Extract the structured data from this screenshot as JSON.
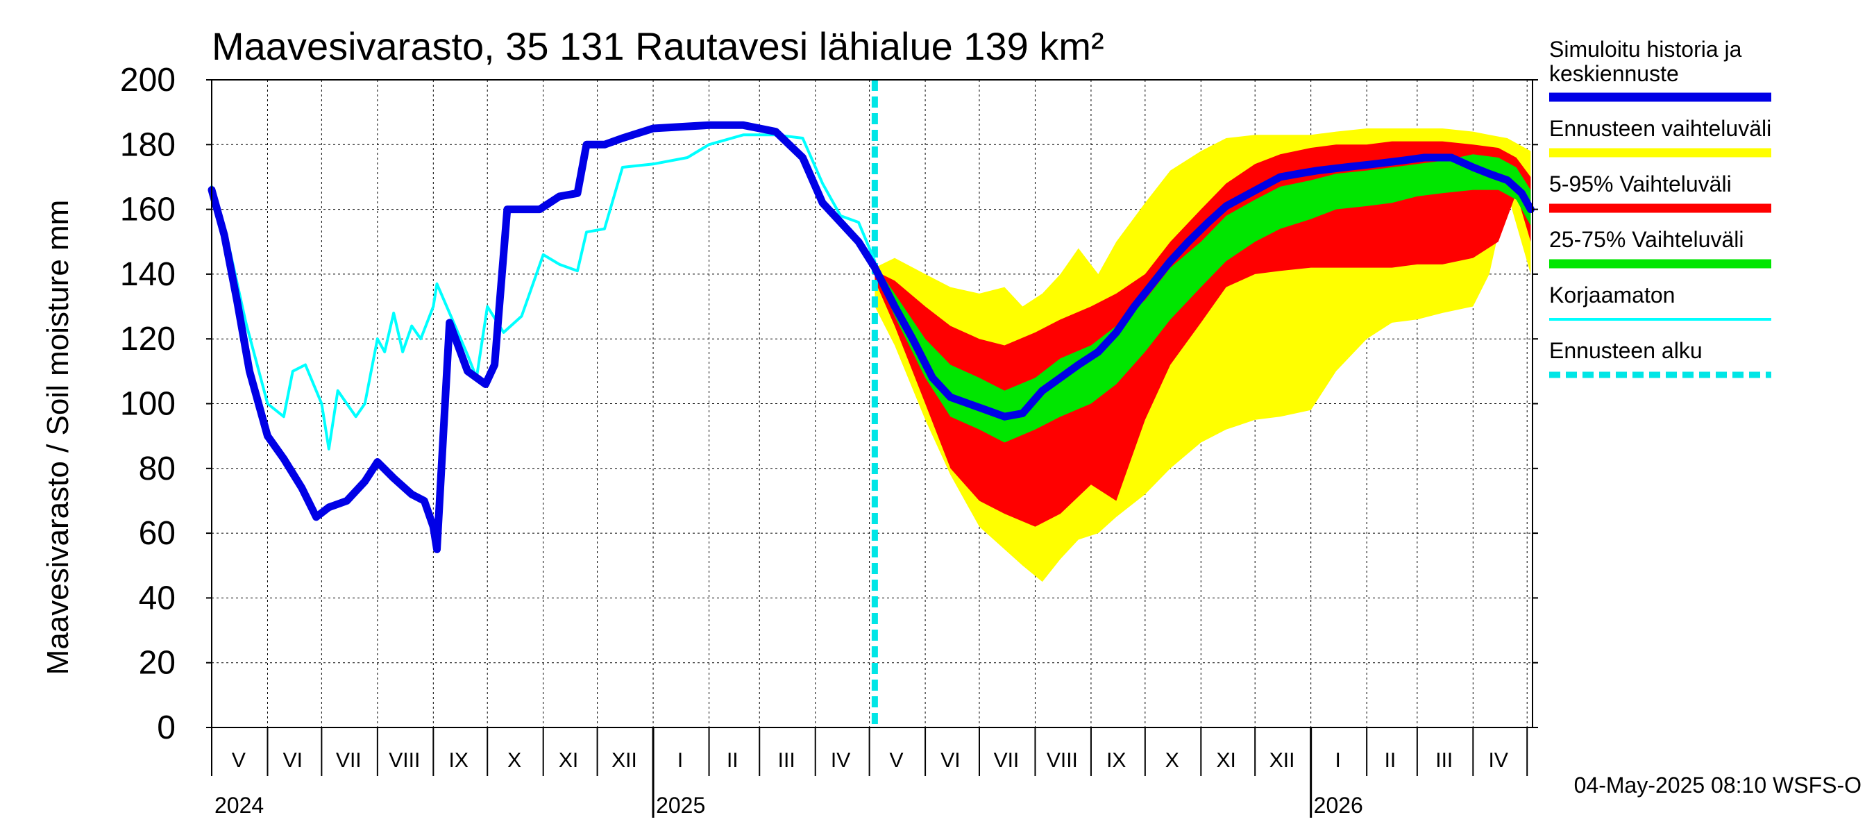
{
  "chart_data": {
    "type": "area",
    "title": "Maavesivarasto, 35 131 Rautavesi lähialue 139 km²",
    "ylabel": "Maavesivarasto / Soil moisture   mm",
    "ylim": [
      0,
      200
    ],
    "y_ticks": [
      0,
      20,
      40,
      60,
      80,
      100,
      120,
      140,
      160,
      180,
      200
    ],
    "grid": true,
    "xlim": [
      "2024-05-01",
      "2026-05-04"
    ],
    "forecast_start": "2025-05-04",
    "month_labels": [
      {
        "label": "V",
        "mid": "2024-05-16"
      },
      {
        "label": "VI",
        "mid": "2024-06-15"
      },
      {
        "label": "VII",
        "mid": "2024-07-16"
      },
      {
        "label": "VIII",
        "mid": "2024-08-16"
      },
      {
        "label": "IX",
        "mid": "2024-09-15"
      },
      {
        "label": "X",
        "mid": "2024-10-16"
      },
      {
        "label": "XI",
        "mid": "2024-11-15"
      },
      {
        "label": "XII",
        "mid": "2024-12-16"
      },
      {
        "label": "I",
        "mid": "2025-01-16"
      },
      {
        "label": "II",
        "mid": "2025-02-14"
      },
      {
        "label": "III",
        "mid": "2025-03-16"
      },
      {
        "label": "IV",
        "mid": "2025-04-15"
      },
      {
        "label": "V",
        "mid": "2025-05-16"
      },
      {
        "label": "VI",
        "mid": "2025-06-15"
      },
      {
        "label": "VII",
        "mid": "2025-07-16"
      },
      {
        "label": "VIII",
        "mid": "2025-08-16"
      },
      {
        "label": "IX",
        "mid": "2025-09-15"
      },
      {
        "label": "X",
        "mid": "2025-10-16"
      },
      {
        "label": "XI",
        "mid": "2025-11-15"
      },
      {
        "label": "XII",
        "mid": "2025-12-16"
      },
      {
        "label": "I",
        "mid": "2026-01-16"
      },
      {
        "label": "II",
        "mid": "2026-02-14"
      },
      {
        "label": "III",
        "mid": "2026-03-16"
      },
      {
        "label": "IV",
        "mid": "2026-04-15"
      }
    ],
    "year_labels": [
      {
        "label": "2024",
        "date": "2024-05-01"
      },
      {
        "label": "2025",
        "date": "2025-01-01"
      },
      {
        "label": "2026",
        "date": "2026-01-01"
      }
    ],
    "legend_position": "right",
    "legend": [
      {
        "label": "Simuloitu historia ja keskiennuste",
        "lines": [
          "Simuloitu historia ja",
          "keskiennuste"
        ],
        "color": "#0000e6",
        "style": "thick"
      },
      {
        "label": "Ennusteen vaihteluväli",
        "lines": [
          "Ennusteen vaihteluväli"
        ],
        "color": "#ffff00",
        "style": "thick"
      },
      {
        "label": "5-95% Vaihteluväli",
        "lines": [
          "5-95% Vaihteluväli"
        ],
        "color": "#ff0000",
        "style": "thick"
      },
      {
        "label": "25-75% Vaihteluväli",
        "lines": [
          "25-75% Vaihteluväli"
        ],
        "color": "#00e600",
        "style": "thick"
      },
      {
        "label": "Korjaamaton",
        "lines": [
          "Korjaamaton"
        ],
        "color": "#00ffff",
        "style": "thin"
      },
      {
        "label": "Ennusteen alku",
        "lines": [
          "Ennusteen alku"
        ],
        "color": "#00e6e6",
        "style": "dashed"
      }
    ],
    "series": [
      {
        "name": "Simuloitu historia ja keskiennuste",
        "color": "#0000e6",
        "x": [
          "2024-05-01",
          "2024-05-08",
          "2024-05-15",
          "2024-05-22",
          "2024-06-01",
          "2024-06-10",
          "2024-06-20",
          "2024-06-28",
          "2024-07-05",
          "2024-07-15",
          "2024-07-25",
          "2024-08-01",
          "2024-08-10",
          "2024-08-20",
          "2024-08-27",
          "2024-09-01",
          "2024-09-03",
          "2024-09-10",
          "2024-09-20",
          "2024-09-30",
          "2024-10-05",
          "2024-10-12",
          "2024-10-20",
          "2024-10-30",
          "2024-11-10",
          "2024-11-20",
          "2024-11-25",
          "2024-12-05",
          "2024-12-15",
          "2025-01-01",
          "2025-02-01",
          "2025-02-20",
          "2025-03-10",
          "2025-03-25",
          "2025-04-05",
          "2025-04-15",
          "2025-04-25",
          "2025-05-04",
          "2025-05-15",
          "2025-05-25",
          "2025-06-05",
          "2025-06-15",
          "2025-06-25",
          "2025-07-05",
          "2025-07-15",
          "2025-07-25",
          "2025-08-05",
          "2025-08-15",
          "2025-08-25",
          "2025-09-05",
          "2025-09-15",
          "2025-09-25",
          "2025-10-05",
          "2025-10-15",
          "2025-10-25",
          "2025-11-05",
          "2025-11-15",
          "2025-11-25",
          "2025-12-05",
          "2025-12-15",
          "2025-12-25",
          "2026-01-05",
          "2026-01-20",
          "2026-02-05",
          "2026-02-20",
          "2026-03-05",
          "2026-03-20",
          "2026-04-01",
          "2026-04-10",
          "2026-04-20",
          "2026-04-28",
          "2026-05-03"
        ],
        "values": [
          166,
          152,
          132,
          110,
          90,
          83,
          74,
          65,
          68,
          70,
          76,
          82,
          77,
          72,
          70,
          62,
          55,
          125,
          110,
          106,
          112,
          160,
          160,
          160,
          164,
          165,
          180,
          180,
          182,
          185,
          186,
          186,
          184,
          176,
          162,
          156,
          150,
          142,
          130,
          120,
          108,
          102,
          100,
          98,
          96,
          97,
          104,
          108,
          112,
          116,
          122,
          130,
          137,
          144,
          150,
          156,
          161,
          164,
          167,
          170,
          171,
          172,
          173,
          174,
          175,
          176,
          176,
          173,
          171,
          169,
          165,
          160
        ]
      },
      {
        "name": "Korjaamaton",
        "color": "#00ffff",
        "x": [
          "2024-05-01",
          "2024-05-10",
          "2024-05-20",
          "2024-06-01",
          "2024-06-10",
          "2024-06-15",
          "2024-06-22",
          "2024-07-01",
          "2024-07-05",
          "2024-07-10",
          "2024-07-15",
          "2024-07-20",
          "2024-07-25",
          "2024-08-01",
          "2024-08-05",
          "2024-08-10",
          "2024-08-15",
          "2024-08-20",
          "2024-08-25",
          "2024-09-01",
          "2024-09-03",
          "2024-09-10",
          "2024-09-20",
          "2024-09-25",
          "2024-10-01",
          "2024-10-10",
          "2024-10-20",
          "2024-11-01",
          "2024-11-10",
          "2024-11-20",
          "2024-11-25",
          "2024-12-05",
          "2024-12-15",
          "2025-01-01",
          "2025-01-20",
          "2025-02-01",
          "2025-02-20",
          "2025-03-10",
          "2025-03-25",
          "2025-04-05",
          "2025-04-15",
          "2025-04-25",
          "2025-05-04"
        ],
        "values": [
          167,
          150,
          125,
          100,
          96,
          110,
          112,
          100,
          86,
          104,
          100,
          96,
          100,
          120,
          116,
          128,
          116,
          124,
          120,
          130,
          137,
          128,
          115,
          108,
          130,
          122,
          127,
          146,
          143,
          141,
          153,
          154,
          173,
          174,
          176,
          180,
          183,
          183,
          182,
          168,
          158,
          156,
          144
        ]
      }
    ],
    "bands": [
      {
        "name": "Ennusteen vaihteluväli",
        "color": "#ffff00",
        "x": [
          "2025-05-04",
          "2025-05-15",
          "2025-06-01",
          "2025-06-15",
          "2025-07-01",
          "2025-07-15",
          "2025-07-25",
          "2025-08-05",
          "2025-08-15",
          "2025-08-25",
          "2025-09-05",
          "2025-09-15",
          "2025-10-01",
          "2025-10-15",
          "2025-11-01",
          "2025-11-15",
          "2025-12-01",
          "2025-12-15",
          "2026-01-01",
          "2026-01-15",
          "2026-02-01",
          "2026-02-15",
          "2026-03-01",
          "2026-03-15",
          "2026-04-01",
          "2026-04-10",
          "2026-04-20",
          "2026-05-03"
        ],
        "upper": [
          142,
          145,
          140,
          136,
          134,
          136,
          130,
          134,
          140,
          148,
          140,
          150,
          162,
          172,
          178,
          182,
          183,
          183,
          183,
          184,
          185,
          185,
          185,
          185,
          184,
          183,
          182,
          178
        ],
        "lower": [
          130,
          118,
          95,
          78,
          62,
          55,
          50,
          45,
          52,
          58,
          60,
          65,
          72,
          80,
          88,
          92,
          95,
          96,
          98,
          110,
          120,
          125,
          126,
          128,
          130,
          140,
          165,
          140
        ]
      },
      {
        "name": "5-95% Vaihteluväli",
        "color": "#ff0000",
        "x": [
          "2025-05-04",
          "2025-05-15",
          "2025-06-01",
          "2025-06-15",
          "2025-07-01",
          "2025-07-15",
          "2025-08-01",
          "2025-08-15",
          "2025-09-01",
          "2025-09-15",
          "2025-10-01",
          "2025-10-15",
          "2025-11-01",
          "2025-11-15",
          "2025-12-01",
          "2025-12-15",
          "2026-01-01",
          "2026-01-15",
          "2026-02-01",
          "2026-02-15",
          "2026-03-01",
          "2026-03-15",
          "2026-04-01",
          "2026-04-15",
          "2026-04-25",
          "2026-05-03"
        ],
        "upper": [
          141,
          138,
          130,
          124,
          120,
          118,
          122,
          126,
          130,
          134,
          140,
          150,
          160,
          168,
          174,
          177,
          179,
          180,
          180,
          181,
          181,
          181,
          180,
          179,
          176,
          170
        ],
        "lower": [
          138,
          124,
          100,
          80,
          70,
          66,
          62,
          66,
          75,
          70,
          95,
          112,
          125,
          136,
          140,
          141,
          142,
          142,
          142,
          142,
          143,
          143,
          145,
          150,
          165,
          150
        ]
      },
      {
        "name": "25-75% Vaihteluväli",
        "color": "#00e600",
        "x": [
          "2025-05-04",
          "2025-05-15",
          "2025-06-01",
          "2025-06-15",
          "2025-07-01",
          "2025-07-15",
          "2025-08-01",
          "2025-08-15",
          "2025-09-01",
          "2025-09-15",
          "2025-10-01",
          "2025-10-15",
          "2025-11-01",
          "2025-11-15",
          "2025-12-01",
          "2025-12-15",
          "2026-01-01",
          "2026-01-15",
          "2026-02-01",
          "2026-02-15",
          "2026-03-01",
          "2026-03-15",
          "2026-04-01",
          "2026-04-15",
          "2026-04-25",
          "2026-05-03"
        ],
        "upper": [
          143,
          134,
          120,
          112,
          108,
          104,
          108,
          114,
          118,
          124,
          132,
          142,
          150,
          158,
          163,
          167,
          169,
          171,
          172,
          173,
          174,
          175,
          177,
          176,
          173,
          166
        ],
        "lower": [
          141,
          127,
          108,
          96,
          92,
          88,
          92,
          96,
          100,
          106,
          116,
          126,
          136,
          144,
          150,
          154,
          157,
          160,
          161,
          162,
          164,
          165,
          166,
          166,
          163,
          155
        ]
      }
    ]
  },
  "footer": {
    "timestamp": "04-May-2025 08:10 WSFS-O"
  }
}
